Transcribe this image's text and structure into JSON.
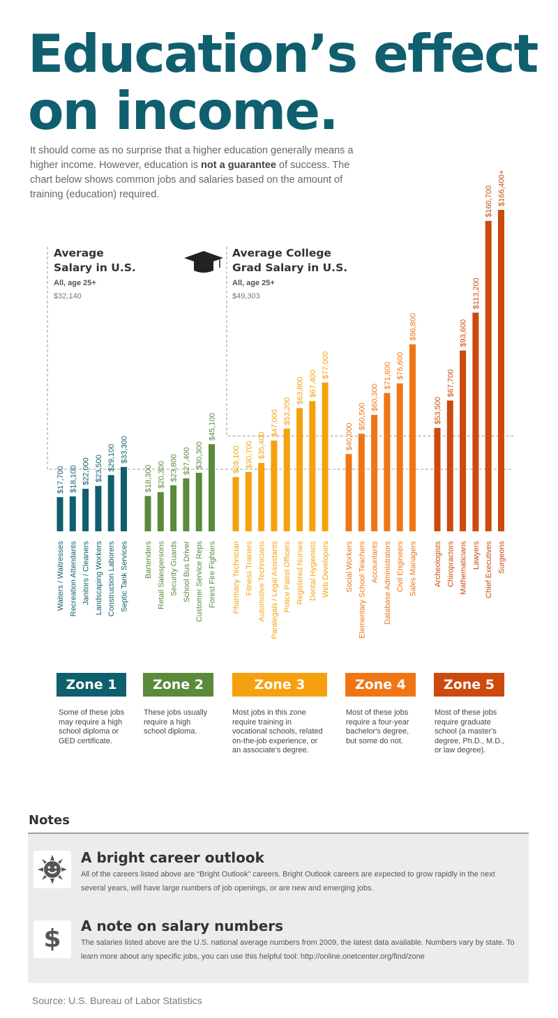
{
  "header": {
    "title_line1": "Education’s effect",
    "title_line2": "on income.",
    "intro_before": "It should come as no surprise that a higher education generally means a higher income. However, education is ",
    "intro_bold": "not a guarantee",
    "intro_after": " of success. The chart below shows common jobs and salaries based on the amount of training (education) required."
  },
  "chart_data": {
    "type": "bar",
    "title": "",
    "xlabel": "",
    "ylabel": "",
    "ylim": [
      0,
      170000
    ],
    "reference_lines": [
      {
        "title": "Average Salary in U.S.",
        "sub": "All, age 25+",
        "value_label": "$32,140",
        "value": 32140
      },
      {
        "title": "Average College Grad Salary in U.S.",
        "sub": "All, age 25+",
        "value_label": "$49,303",
        "value": 49303
      }
    ],
    "zones": [
      {
        "name": "Zone 1",
        "color": "#0f5f6e",
        "jobs": [
          "Waiters / Waitresses",
          "Recreation Attendants",
          "Janitors / Cleaners",
          "Landscaping Workers",
          "Construction Laborers",
          "Septic Tank Services"
        ],
        "values": [
          17700,
          18100,
          22000,
          23500,
          29100,
          33300
        ],
        "labels": [
          "$17,700",
          "$18,100",
          "$22,000",
          "$23,500",
          "$29,100",
          "$33,300"
        ]
      },
      {
        "name": "Zone 2",
        "color": "#5a8a3a",
        "jobs": [
          "Bartenders",
          "Retail Salespersons",
          "Security Guards",
          "School Bus Driver",
          "Customer Service Reps",
          "Forest Fire Fighters"
        ],
        "values": [
          18300,
          20300,
          23800,
          27400,
          30300,
          45100
        ],
        "labels": [
          "$18,300",
          "$20,300",
          "$23,800",
          "$27,400",
          "$30,300",
          "$45,100"
        ]
      },
      {
        "name": "Zone 3",
        "color": "#f5a10f",
        "jobs": [
          "Pharmacy Technician",
          "Fitness Trainers",
          "Automotive Technicians",
          "Paralegals / Legal Assistants",
          "Police Patrol Officers",
          "Registered Nurses",
          "Dental Hygienists",
          "Web Developers"
        ],
        "values": [
          28100,
          30700,
          35400,
          47000,
          53200,
          63800,
          67400,
          77000
        ],
        "labels": [
          "$28,100",
          "$30,700",
          "$35,400",
          "$47,000",
          "$53,200",
          "$63,800",
          "$67,400",
          "$77,000"
        ]
      },
      {
        "name": "Zone 4",
        "color": "#f07615",
        "jobs": [
          "Social Workers",
          "Elementary School Teachers",
          "Accountants",
          "Database Administrators",
          "Civil Engineers",
          "Sales Managers"
        ],
        "values": [
          40000,
          50500,
          60300,
          71600,
          76600,
          96800
        ],
        "labels": [
          "$40,000",
          "$50,500",
          "$60,300",
          "$71,600",
          "$76,600",
          "$96,800"
        ]
      },
      {
        "name": "Zone 5",
        "color": "#cc4a0d",
        "jobs": [
          "Archeologists",
          "Chiropractors",
          "Mathematicians",
          "Lawyers",
          "Chief Executives",
          "Surgeons"
        ],
        "values": [
          53500,
          67700,
          93600,
          113200,
          160700,
          166400
        ],
        "labels": [
          "$53,500",
          "$67,700",
          "$93,600",
          "$113,200",
          "$160,700",
          "$166,400+"
        ]
      }
    ]
  },
  "zone_descriptions": [
    "Some of these jobs may require a high school diploma or GED certificate.",
    "These jobs usually require a high school diploma.",
    "Most jobs in this zone require training in vocational schools, related on-the-job experience, or an associate's degree.",
    "Most of these jobs require a four-year bachelor's degree, but some do not.",
    "Most of these jobs require graduate school (a master's degree, Ph.D., M.D., or law degree)."
  ],
  "notes": {
    "title": "Notes",
    "items": [
      {
        "heading": "A bright career outlook",
        "icon": "sun-icon",
        "text": "All of the careers listed above are “Bright Outlook” careers. Bright Outlook careers are expected to grow rapidly in the next several years, will have large numbers of job openings, or are new and emerging jobs."
      },
      {
        "heading": "A note on salary numbers",
        "icon": "dollar-icon",
        "icon_glyph": "$",
        "text": "The salaries listed above are the U.S. national average numbers from 2009, the latest data available. Numbers vary by state. To learn more about any specific jobs, you can use this helpful tool: http://online.onetcenter.org/find/zone"
      }
    ]
  },
  "source": "Source: U.S. Bureau of Labor Statistics"
}
